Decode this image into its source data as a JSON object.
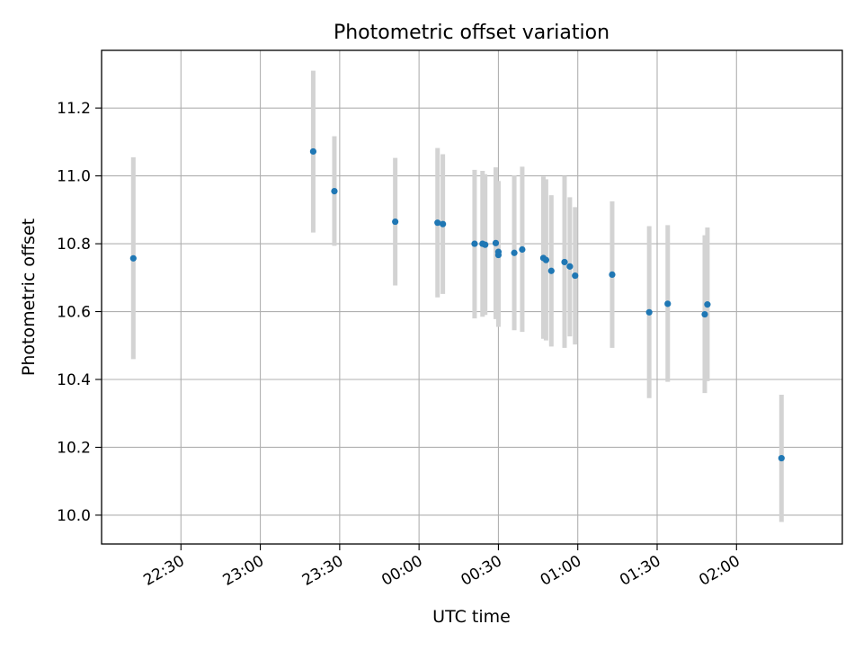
{
  "chart_data": {
    "type": "scatter",
    "title": "Photometric offset variation",
    "xlabel": "UTC time",
    "ylabel": "Photometric offset",
    "x_axis_kind": "time",
    "xlim": [
      "22:00",
      "02:40"
    ],
    "ylim": [
      9.915,
      11.37
    ],
    "x_ticks": [
      "22:30",
      "23:00",
      "23:30",
      "00:00",
      "00:30",
      "01:00",
      "01:30",
      "02:00"
    ],
    "y_ticks": [
      10.0,
      10.2,
      10.4,
      10.6,
      10.8,
      11.0,
      11.2
    ],
    "y_tick_labels": [
      "10.0",
      "10.2",
      "10.4",
      "10.6",
      "10.8",
      "11.0",
      "11.2"
    ],
    "grid": true,
    "colors": {
      "point": "#1f77b4",
      "errorbar": "#d3d3d3",
      "grid": "#b0b0b0"
    },
    "points": [
      {
        "x": "22:12",
        "y": 10.757,
        "ylow": 10.46,
        "yhigh": 11.055
      },
      {
        "x": "23:20",
        "y": 11.072,
        "ylow": 10.833,
        "yhigh": 11.31
      },
      {
        "x": "23:28",
        "y": 10.955,
        "ylow": 10.794,
        "yhigh": 11.117
      },
      {
        "x": "23:51",
        "y": 10.865,
        "ylow": 10.677,
        "yhigh": 11.053
      },
      {
        "x": "00:07",
        "y": 10.862,
        "ylow": 10.642,
        "yhigh": 11.082
      },
      {
        "x": "00:09",
        "y": 10.858,
        "ylow": 10.652,
        "yhigh": 11.064
      },
      {
        "x": "00:21",
        "y": 10.8,
        "ylow": 10.58,
        "yhigh": 11.018
      },
      {
        "x": "00:24",
        "y": 10.8,
        "ylow": 10.585,
        "yhigh": 11.015
      },
      {
        "x": "00:25",
        "y": 10.797,
        "ylow": 10.59,
        "yhigh": 11.005
      },
      {
        "x": "00:29",
        "y": 10.802,
        "ylow": 10.578,
        "yhigh": 11.025
      },
      {
        "x": "00:30",
        "y": 10.767,
        "ylow": 10.555,
        "yhigh": 10.98
      },
      {
        "x": "00:30",
        "y": 10.776,
        "ylow": 10.565,
        "yhigh": 10.985
      },
      {
        "x": "00:36",
        "y": 10.773,
        "ylow": 10.545,
        "yhigh": 11.002
      },
      {
        "x": "00:39",
        "y": 10.783,
        "ylow": 10.54,
        "yhigh": 11.027
      },
      {
        "x": "00:47",
        "y": 10.758,
        "ylow": 10.52,
        "yhigh": 10.998
      },
      {
        "x": "00:48",
        "y": 10.752,
        "ylow": 10.515,
        "yhigh": 10.99
      },
      {
        "x": "00:50",
        "y": 10.72,
        "ylow": 10.497,
        "yhigh": 10.943
      },
      {
        "x": "00:55",
        "y": 10.746,
        "ylow": 10.493,
        "yhigh": 11.0
      },
      {
        "x": "00:57",
        "y": 10.733,
        "ylow": 10.527,
        "yhigh": 10.937
      },
      {
        "x": "00:59",
        "y": 10.706,
        "ylow": 10.503,
        "yhigh": 10.908
      },
      {
        "x": "01:13",
        "y": 10.709,
        "ylow": 10.493,
        "yhigh": 10.925
      },
      {
        "x": "01:27",
        "y": 10.598,
        "ylow": 10.345,
        "yhigh": 10.852
      },
      {
        "x": "01:34",
        "y": 10.623,
        "ylow": 10.393,
        "yhigh": 10.855
      },
      {
        "x": "01:48",
        "y": 10.592,
        "ylow": 10.36,
        "yhigh": 10.825
      },
      {
        "x": "01:49",
        "y": 10.621,
        "ylow": 10.395,
        "yhigh": 10.848
      },
      {
        "x": "02:17",
        "y": 10.168,
        "ylow": 9.98,
        "yhigh": 10.355
      }
    ]
  }
}
